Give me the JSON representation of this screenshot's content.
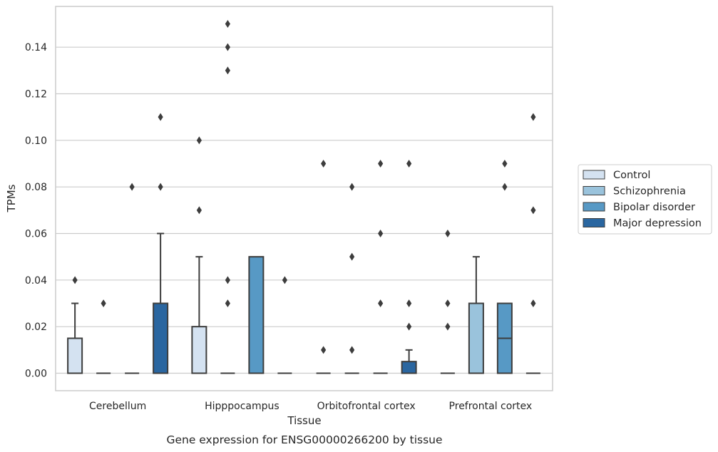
{
  "caption": "Gene expression for ENSG00000266200 by tissue",
  "chart_data": {
    "type": "box",
    "title": "",
    "xlabel": "Tissue",
    "ylabel": "TPMs",
    "ylim": [
      -0.0075,
      0.1575
    ],
    "yticks": [
      "0.00",
      "0.02",
      "0.04",
      "0.06",
      "0.08",
      "0.10",
      "0.12",
      "0.14"
    ],
    "grid": true,
    "legend_position": "right",
    "categories": [
      "Cerebellum",
      "Hipppocampus",
      "Orbitofrontal cortex",
      "Prefrontal cortex"
    ],
    "series": [
      {
        "name": "Control",
        "color": "#d4e2f1",
        "boxes": [
          {
            "q1": 0,
            "median": 0,
            "q3": 0.015,
            "whisker_low": 0,
            "whisker_high": 0.03,
            "outliers": [
              0.04
            ]
          },
          {
            "q1": 0,
            "median": 0,
            "q3": 0.02,
            "whisker_low": 0,
            "whisker_high": 0.05,
            "outliers": [
              0.07,
              0.1
            ]
          },
          {
            "q1": 0,
            "median": 0,
            "q3": 0,
            "whisker_low": 0,
            "whisker_high": 0,
            "outliers": [
              0.01,
              0.09
            ]
          },
          {
            "q1": 0,
            "median": 0,
            "q3": 0,
            "whisker_low": 0,
            "whisker_high": 0,
            "outliers": [
              0.02,
              0.03,
              0.06
            ]
          }
        ]
      },
      {
        "name": "Schizophrenia",
        "color": "#9ac3dc",
        "boxes": [
          {
            "q1": 0,
            "median": 0,
            "q3": 0,
            "whisker_low": 0,
            "whisker_high": 0,
            "outliers": [
              0.03
            ]
          },
          {
            "q1": 0,
            "median": 0,
            "q3": 0,
            "whisker_low": 0,
            "whisker_high": 0,
            "outliers": [
              0.03,
              0.04,
              0.13,
              0.14,
              0.15
            ]
          },
          {
            "q1": 0,
            "median": 0,
            "q3": 0,
            "whisker_low": 0,
            "whisker_high": 0,
            "outliers": [
              0.01,
              0.05,
              0.08
            ]
          },
          {
            "q1": 0,
            "median": 0,
            "q3": 0.03,
            "whisker_low": 0,
            "whisker_high": 0.05,
            "outliers": []
          }
        ]
      },
      {
        "name": "Bipolar disorder",
        "color": "#5799c5",
        "boxes": [
          {
            "q1": 0,
            "median": 0,
            "q3": 0,
            "whisker_low": 0,
            "whisker_high": 0,
            "outliers": [
              0.08
            ]
          },
          {
            "q1": 0,
            "median": 0,
            "q3": 0.05,
            "whisker_low": 0,
            "whisker_high": 0.05,
            "outliers": []
          },
          {
            "q1": 0,
            "median": 0,
            "q3": 0,
            "whisker_low": 0,
            "whisker_high": 0,
            "outliers": [
              0.03,
              0.06,
              0.09
            ]
          },
          {
            "q1": 0,
            "median": 0.015,
            "q3": 0.03,
            "whisker_low": 0,
            "whisker_high": 0.03,
            "outliers": [
              0.08,
              0.09
            ]
          }
        ]
      },
      {
        "name": "Major depression",
        "color": "#2a66a0",
        "boxes": [
          {
            "q1": 0,
            "median": 0,
            "q3": 0.03,
            "whisker_low": 0,
            "whisker_high": 0.06,
            "outliers": [
              0.08,
              0.11
            ]
          },
          {
            "q1": 0,
            "median": 0,
            "q3": 0,
            "whisker_low": 0,
            "whisker_high": 0,
            "outliers": [
              0.04
            ]
          },
          {
            "q1": 0,
            "median": 0,
            "q3": 0.005,
            "whisker_low": 0,
            "whisker_high": 0.01,
            "outliers": [
              0.02,
              0.03,
              0.09
            ]
          },
          {
            "q1": 0,
            "median": 0,
            "q3": 0,
            "whisker_low": 0,
            "whisker_high": 0,
            "outliers": [
              0.03,
              0.07,
              0.11
            ]
          }
        ]
      }
    ]
  }
}
